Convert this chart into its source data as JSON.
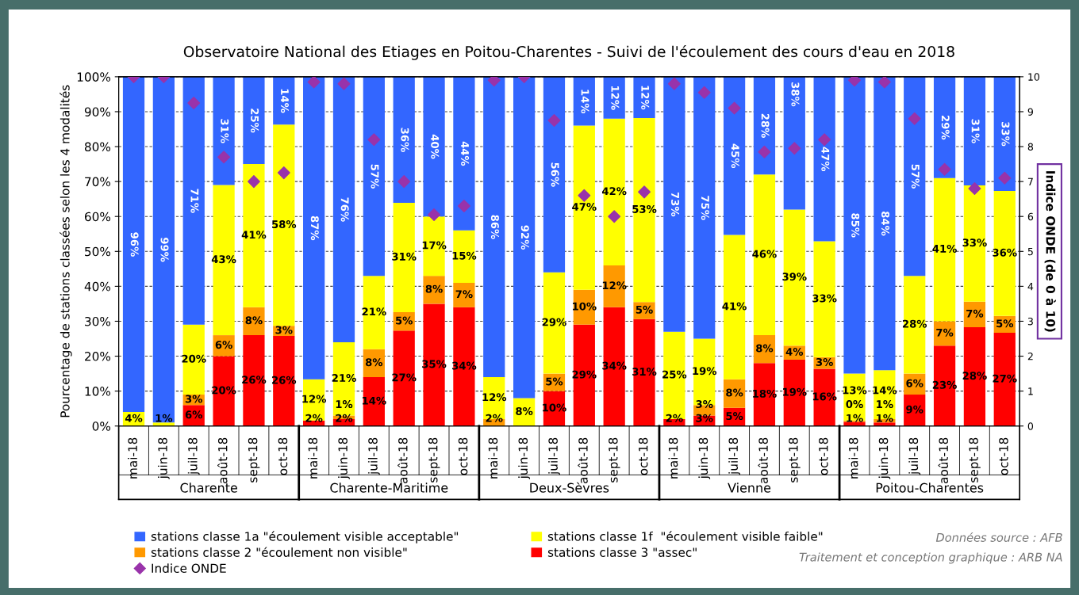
{
  "chart_data": {
    "type": "bar",
    "stacked": true,
    "title": "Observatoire National des Etiages en Poitou-Charentes - Suivi de l'écoulement des cours d'eau en 2018",
    "ylabel": "Pourcentage de stations classées selon les 4 modalités",
    "y2label": "Indice ONDE (de 0 à 10)",
    "categories": [
      "mai-18",
      "juin-18",
      "juil-18",
      "août-18",
      "sept-18",
      "oct-18",
      "mai-18",
      "juin-18",
      "juil-18",
      "août-18",
      "sept-18",
      "oct-18",
      "mai-18",
      "juin-18",
      "juil-18",
      "août-18",
      "sept-18",
      "oct-18",
      "mai-18",
      "juin-18",
      "juil-18",
      "août-18",
      "sept-18",
      "oct-18",
      "mai-18",
      "juin-18",
      "juil-18",
      "août-18",
      "sept-18",
      "oct-18"
    ],
    "annotations": [
      "Charente",
      "Charente-Maritime",
      "Deux-Sèvres",
      "Vienne",
      "Poitou-Charentes",
      "Données source : AFB",
      "Traitement et conception graphique : ARB NA"
    ],
    "series": [
      {
        "name": "stations classe 3 \"assec\"",
        "color": "#ff0000",
        "values": [
          0,
          0,
          6,
          20,
          26,
          25.8,
          1.6,
          2,
          14,
          27.3,
          35,
          34,
          0,
          0,
          10,
          29,
          34,
          30.6,
          2,
          3,
          5.2,
          18,
          19,
          16.4,
          1.2,
          1,
          9,
          23,
          28.3,
          26.7
        ],
        "value_labels": [
          null,
          null,
          "6%",
          "20%",
          "26%",
          "26%",
          "2%",
          "2%",
          "14%",
          "27%",
          "35%",
          "34%",
          null,
          null,
          "10%",
          "29%",
          "34%",
          "31%",
          "2%",
          "3%",
          "5%",
          "18%",
          "19%",
          "16%",
          "1%",
          "1%",
          "9%",
          "23%",
          "28%",
          "27%"
        ]
      },
      {
        "name": "stations classe 2 \"écoulement non visible\"",
        "color": "#ff9900",
        "values": [
          0,
          0,
          3,
          6,
          8,
          2.9,
          0,
          1,
          8,
          5.3,
          8,
          7,
          2,
          0,
          5,
          10,
          12,
          4.9,
          0,
          3,
          8.2,
          8,
          4,
          3.3,
          0.4,
          1,
          6,
          7,
          7.3,
          4.8
        ],
        "value_labels": [
          null,
          null,
          "3%",
          "6%",
          "8%",
          "3%",
          null,
          "1%",
          "8%",
          "5%",
          "8%",
          "7%",
          "2%",
          null,
          "5%",
          "10%",
          "12%",
          "5%",
          null,
          "3%",
          "8%",
          "8%",
          "4%",
          "3%",
          "0%",
          "1%",
          "6%",
          "7%",
          "7%",
          "5%"
        ]
      },
      {
        "name": "stations classe 1f  \"écoulement visible faible\"",
        "color": "#ffff00",
        "values": [
          4,
          1,
          20,
          43,
          41,
          57.6,
          11.8,
          21,
          21,
          31.3,
          17,
          15,
          12,
          8,
          29,
          47,
          42,
          52.7,
          25,
          19,
          41.3,
          46,
          39,
          33.2,
          13.4,
          14,
          28,
          41,
          33.3,
          35.8
        ],
        "value_labels": [
          "4%",
          "1%",
          "20%",
          "43%",
          "41%",
          "58%",
          "12%",
          "21%",
          "21%",
          "31%",
          "17%",
          "15%",
          "12%",
          "8%",
          "29%",
          "47%",
          "42%",
          "53%",
          "25%",
          "19%",
          "41%",
          "46%",
          "39%",
          "33%",
          "13%",
          "14%",
          "28%",
          "41%",
          "33%",
          "36%"
        ]
      },
      {
        "name": "stations classe 1a \"écoulement visible acceptable\"",
        "color": "#3366ff",
        "values": [
          96,
          99,
          71,
          31,
          25,
          13.7,
          86.6,
          76,
          57,
          36.1,
          40,
          44,
          86,
          92,
          56,
          14,
          12,
          11.8,
          73,
          75,
          45.3,
          28,
          38,
          47.1,
          85,
          84,
          57,
          29,
          31.1,
          32.7
        ],
        "value_labels": [
          "96%",
          "99%",
          "71%",
          "31%",
          "25%",
          "14%",
          "87%",
          "76%",
          "57%",
          "36%",
          "40%",
          "44%",
          "86%",
          "92%",
          "56%",
          "14%",
          "12%",
          "12%",
          "73%",
          "75%",
          "45%",
          "28%",
          "38%",
          "47%",
          "85%",
          "84%",
          "57%",
          "29%",
          "31%",
          "33%"
        ]
      },
      {
        "name": "Indice ONDE",
        "type": "scatter",
        "axis": "y2",
        "marker": "diamond",
        "color": "#9933aa",
        "values": [
          10,
          10,
          9.25,
          7.7,
          7.0,
          7.25,
          9.85,
          9.8,
          8.2,
          7.0,
          6.05,
          6.3,
          9.9,
          10,
          8.75,
          6.6,
          6.0,
          6.7,
          9.8,
          9.55,
          9.1,
          7.85,
          7.95,
          8.2,
          9.9,
          9.85,
          8.8,
          7.35,
          6.8,
          7.1
        ]
      }
    ],
    "ylim": [
      0,
      100
    ],
    "yticks": [
      {
        "value": 0,
        "label": "0%"
      },
      {
        "value": 10,
        "label": "10%"
      },
      {
        "value": 20,
        "label": "20%"
      },
      {
        "value": 30,
        "label": "30%"
      },
      {
        "value": 40,
        "label": "40%"
      },
      {
        "value": 50,
        "label": "50%"
      },
      {
        "value": 60,
        "label": "60%"
      },
      {
        "value": 70,
        "label": "70%"
      },
      {
        "value": 80,
        "label": "80%"
      },
      {
        "value": 90,
        "label": "90%"
      },
      {
        "value": 100,
        "label": "100%"
      }
    ],
    "y2lim": [
      0,
      10
    ],
    "y2ticks": [
      0,
      1,
      2,
      3,
      4,
      5,
      6,
      7,
      8,
      9,
      10
    ],
    "grid": "y",
    "legend": "bottom"
  }
}
